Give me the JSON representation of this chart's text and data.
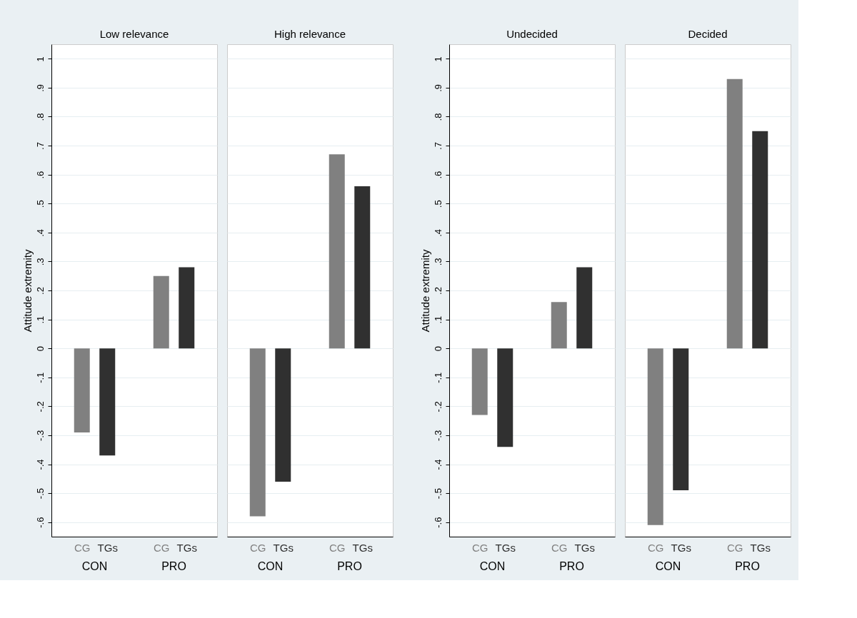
{
  "chart_data": [
    {
      "type": "bar",
      "title": "Low relevance",
      "ylabel": "Attitude extremity",
      "categories": [
        "CON",
        "PRO"
      ],
      "ylim": [
        -0.65,
        1.05
      ],
      "yticks": [
        {
          "value": -0.6,
          "label": "-.6"
        },
        {
          "value": -0.5,
          "label": "-.5"
        },
        {
          "value": -0.4,
          "label": "-.4"
        },
        {
          "value": -0.3,
          "label": "-.3"
        },
        {
          "value": -0.2,
          "label": "-.2"
        },
        {
          "value": -0.1,
          "label": "-.1"
        },
        0,
        {
          "value": 0.1,
          "label": ".1"
        },
        {
          "value": 0.2,
          "label": ".2"
        },
        {
          "value": 0.3,
          "label": ".3"
        },
        {
          "value": 0.4,
          "label": ".4"
        },
        {
          "value": 0.5,
          "label": ".5"
        },
        {
          "value": 0.6,
          "label": ".6"
        },
        {
          "value": 0.7,
          "label": ".7"
        },
        {
          "value": 0.8,
          "label": ".8"
        },
        {
          "value": 0.9,
          "label": ".9"
        },
        1
      ],
      "grid": "y",
      "legend": false,
      "series": [
        {
          "name": "CG",
          "color": "#808080",
          "values": [
            -0.29,
            0.25
          ]
        },
        {
          "name": "TGs",
          "color": "#303030",
          "values": [
            -0.37,
            0.28
          ]
        }
      ]
    },
    {
      "type": "bar",
      "title": "High relevance",
      "categories": [
        "CON",
        "PRO"
      ],
      "ylim": [
        -0.65,
        1.05
      ],
      "yticks": [
        -0.6,
        -0.5,
        -0.4,
        -0.3,
        -0.2,
        -0.1,
        0,
        0.1,
        0.2,
        0.3,
        0.4,
        0.5,
        0.6,
        0.7,
        0.8,
        0.9,
        1
      ],
      "tick_labels": "x",
      "grid": "y",
      "legend": false,
      "series": [
        {
          "name": "CG",
          "color": "#808080",
          "values": [
            -0.58,
            0.67
          ]
        },
        {
          "name": "TGs",
          "color": "#303030",
          "values": [
            -0.46,
            0.56
          ]
        }
      ]
    },
    {
      "type": "bar",
      "title": "Undecided",
      "ylabel": "Attitude extremity",
      "categories": [
        "CON",
        "PRO"
      ],
      "ylim": [
        -0.65,
        1.05
      ],
      "yticks": [
        {
          "value": -0.6,
          "label": "-.6"
        },
        {
          "value": -0.5,
          "label": "-.5"
        },
        {
          "value": -0.4,
          "label": "-.4"
        },
        {
          "value": -0.3,
          "label": "-.3"
        },
        {
          "value": -0.2,
          "label": "-.2"
        },
        {
          "value": -0.1,
          "label": "-.1"
        },
        0,
        {
          "value": 0.1,
          "label": ".1"
        },
        {
          "value": 0.2,
          "label": ".2"
        },
        {
          "value": 0.3,
          "label": ".3"
        },
        {
          "value": 0.4,
          "label": ".4"
        },
        {
          "value": 0.5,
          "label": ".5"
        },
        {
          "value": 0.6,
          "label": ".6"
        },
        {
          "value": 0.7,
          "label": ".7"
        },
        {
          "value": 0.8,
          "label": ".8"
        },
        {
          "value": 0.9,
          "label": ".9"
        },
        1
      ],
      "grid": "y",
      "legend": false,
      "series": [
        {
          "name": "CG",
          "color": "#808080",
          "values": [
            -0.23,
            0.16
          ]
        },
        {
          "name": "TGs",
          "color": "#303030",
          "values": [
            -0.34,
            0.28
          ]
        }
      ]
    },
    {
      "type": "bar",
      "title": "Decided",
      "categories": [
        "CON",
        "PRO"
      ],
      "ylim": [
        -0.65,
        1.05
      ],
      "yticks": [
        -0.6,
        -0.5,
        -0.4,
        -0.3,
        -0.2,
        -0.1,
        0,
        0.1,
        0.2,
        0.3,
        0.4,
        0.5,
        0.6,
        0.7,
        0.8,
        0.9,
        1
      ],
      "tick_labels": "x",
      "grid": "y",
      "legend": false,
      "series": [
        {
          "name": "CG",
          "color": "#808080",
          "values": [
            -0.61,
            0.93
          ]
        },
        {
          "name": "TGs",
          "color": "#303030",
          "values": [
            -0.49,
            0.75
          ]
        }
      ]
    }
  ]
}
